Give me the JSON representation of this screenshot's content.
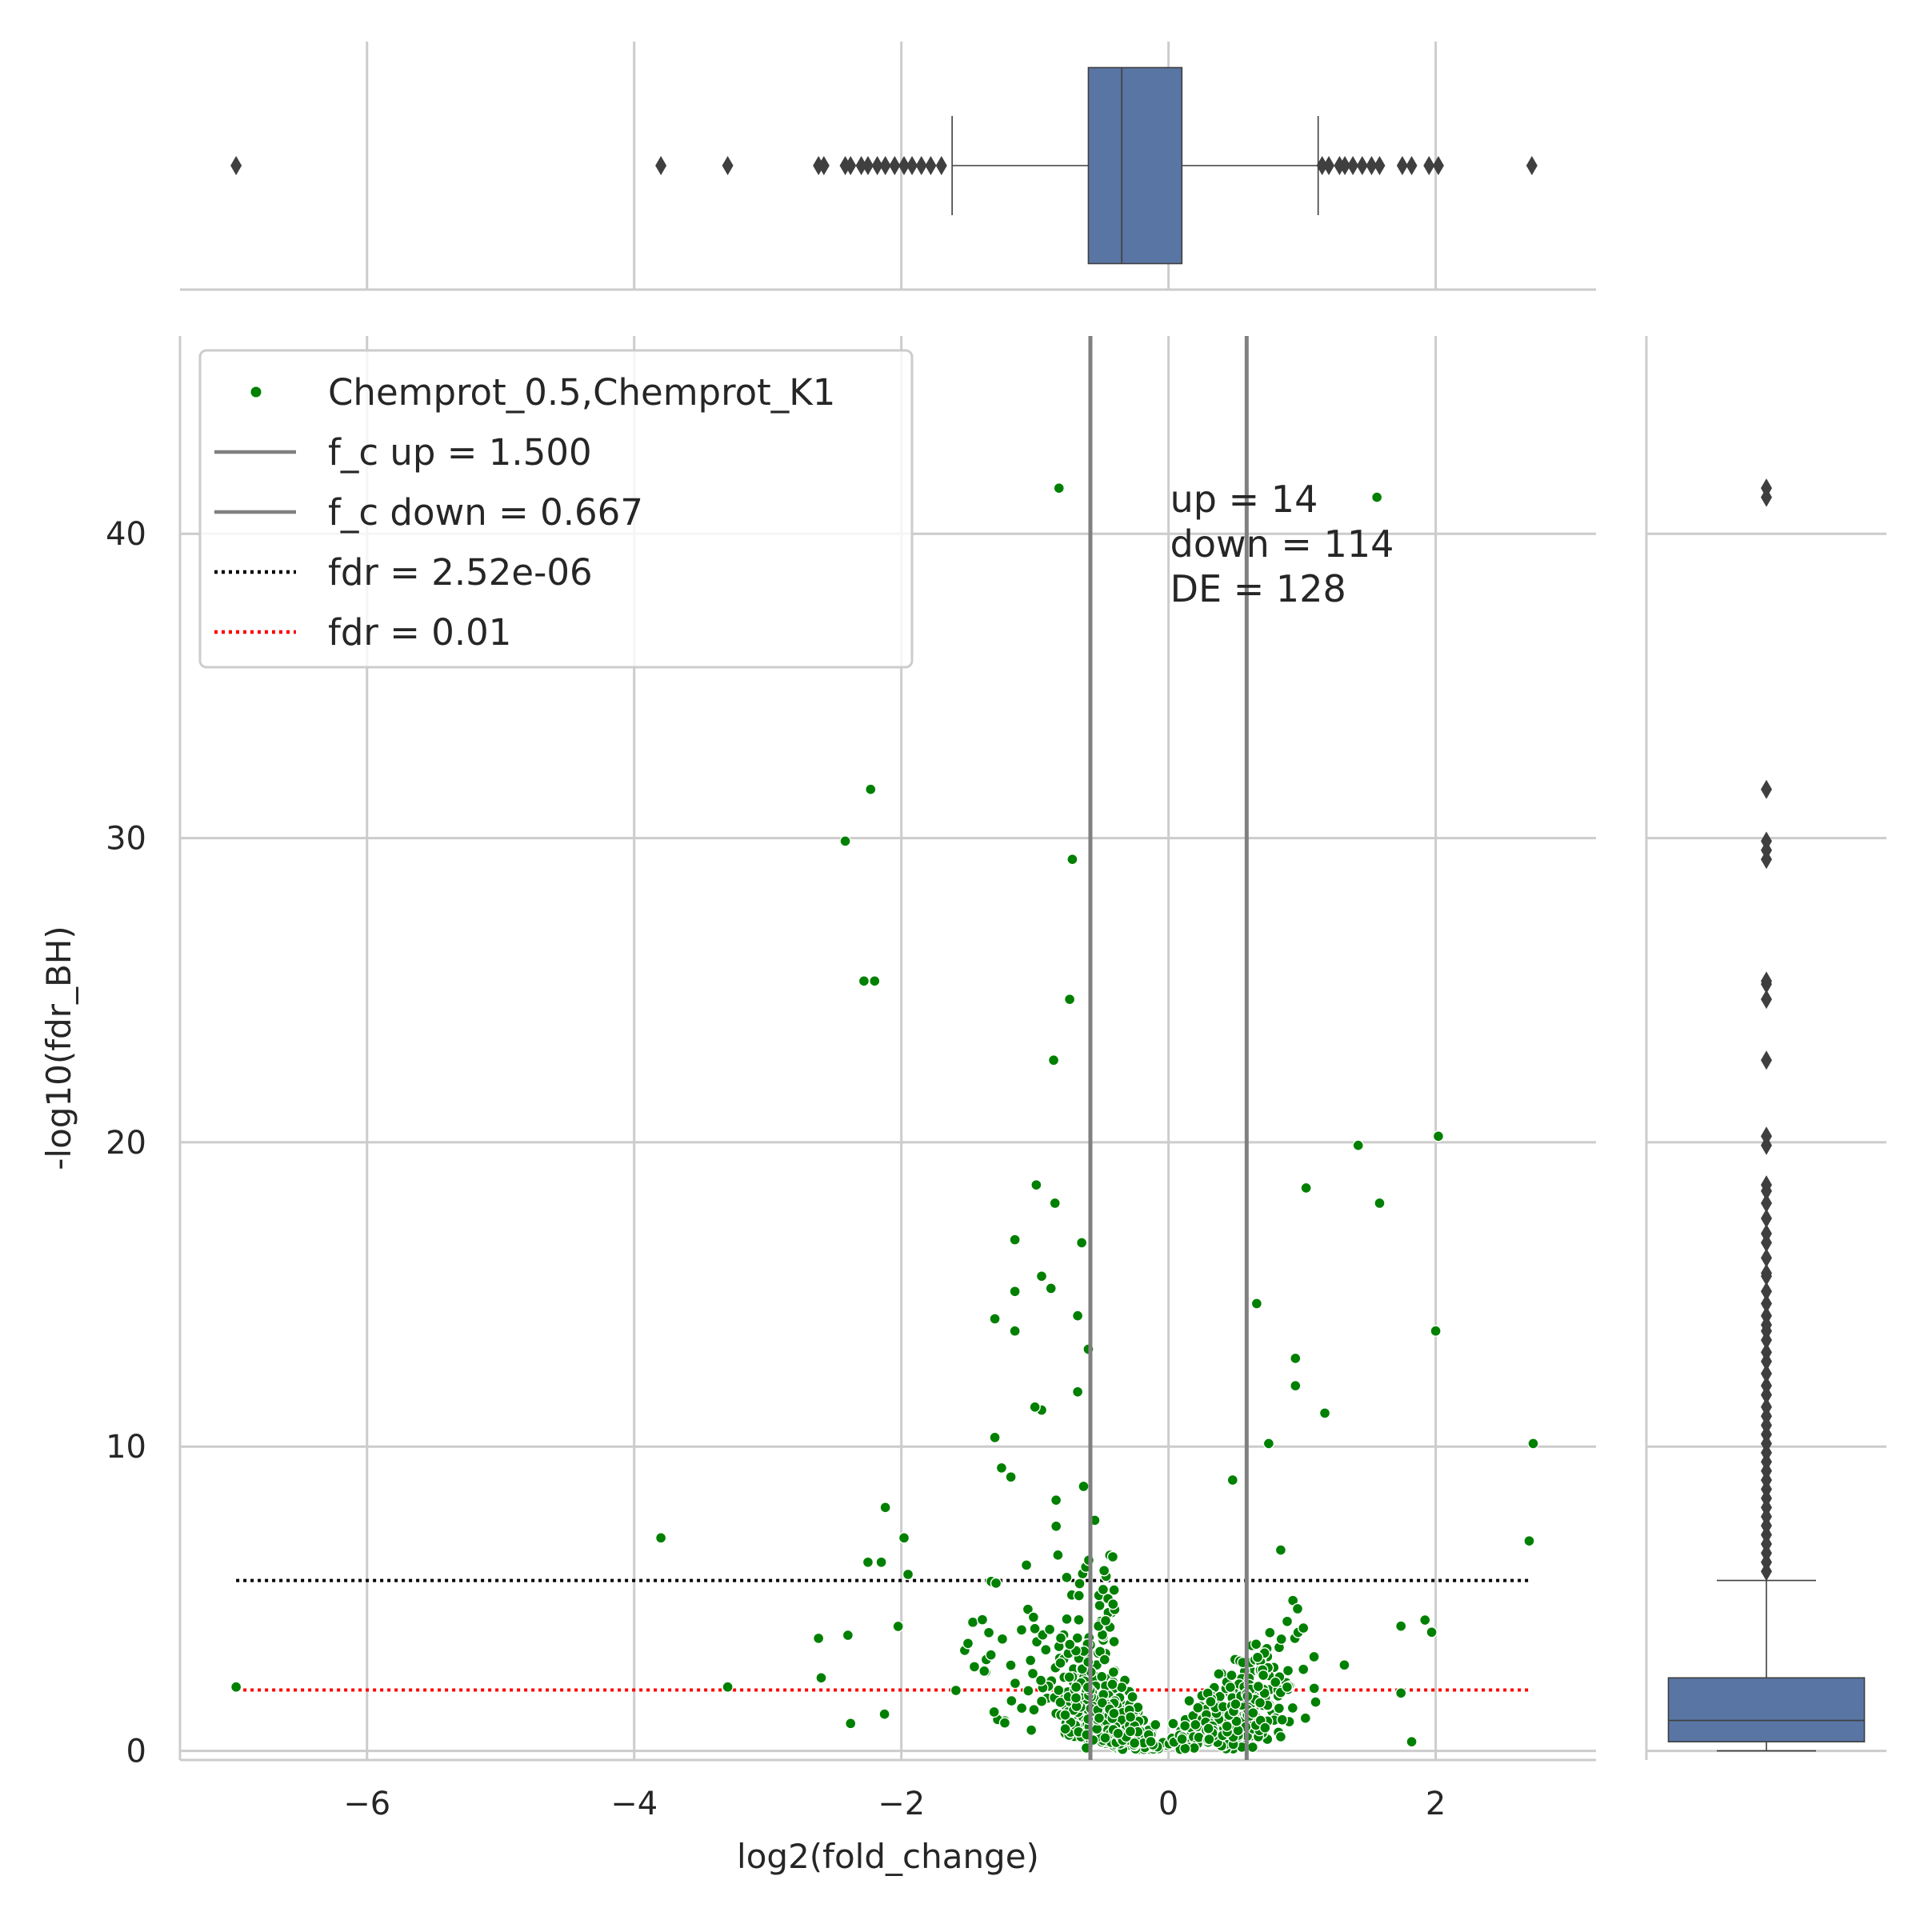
{
  "chart_data": {
    "type": "scatter",
    "subtype": "volcano-plot-with-marginal-boxplots",
    "xlabel": "log2(fold_change)",
    "ylabel": "-log10(fdr_BH)",
    "xlim": [
      -7.4,
      3.2
    ],
    "ylim": [
      -0.3,
      46.5
    ],
    "x_ticks": [
      -6,
      -4,
      -2,
      0,
      2
    ],
    "x_tick_labels": [
      "−6",
      "−4",
      "−2",
      "0",
      "2"
    ],
    "y_ticks": [
      0,
      10,
      20,
      30,
      40
    ],
    "y_tick_labels": [
      "0",
      "10",
      "20",
      "30",
      "40"
    ],
    "grid": true,
    "legend_position": "upper-left",
    "colors": {
      "points": "#008000",
      "fc_lines": "#808080",
      "fdr_strict": "#000000",
      "fdr_loose": "#ff0000",
      "box_fill": "#5975a4",
      "box_edge": "#3f3f3f",
      "grid": "#cccccc"
    },
    "legend": [
      {
        "label": "Chemprot_0.5,Chemprot_K1",
        "kind": "marker",
        "color": "#008000"
      },
      {
        "label": "f_c up = 1.500",
        "kind": "solid",
        "color": "#808080"
      },
      {
        "label": "f_c down = 0.667",
        "kind": "solid",
        "color": "#808080"
      },
      {
        "label": "fdr = 2.52e-06",
        "kind": "dotted",
        "color": "#000000"
      },
      {
        "label": "fdr = 0.01",
        "kind": "dotted",
        "color": "#ff0000"
      }
    ],
    "annotation": [
      "up = 14",
      "down = 114",
      "DE = 128"
    ],
    "vertical_lines_x": [
      -0.585,
      0.585
    ],
    "horizontal_lines": [
      {
        "y": 5.6,
        "xrange": [
          -6.98,
          2.72
        ],
        "color": "#000000"
      },
      {
        "y": 2.0,
        "xrange": [
          -6.98,
          2.72
        ],
        "color": "#ff0000"
      }
    ],
    "top_boxplot_x": {
      "q1": -0.6,
      "median": -0.35,
      "q3": 0.1,
      "whisker_low": -1.62,
      "whisker_high": 1.12,
      "outliers": [
        -6.98,
        -3.8,
        -3.3,
        -2.62,
        -2.58,
        -2.42,
        -2.38,
        -2.3,
        -2.25,
        -2.18,
        -2.12,
        -2.05,
        -1.98,
        -1.92,
        -1.85,
        -1.78,
        -1.7,
        1.15,
        1.2,
        1.28,
        1.32,
        1.38,
        1.45,
        1.52,
        1.58,
        1.75,
        1.82,
        1.95,
        2.02,
        2.72
      ]
    },
    "right_boxplot_y": {
      "q1": 0.3,
      "median": 1.0,
      "q3": 2.4,
      "whisker_low": 0.0,
      "whisker_high": 5.6,
      "outliers": [
        41.5,
        41.2,
        31.6,
        29.9,
        29.6,
        29.3,
        25.3,
        25.2,
        24.7,
        22.7,
        20.2,
        19.9,
        18.6,
        18.4,
        18.0,
        17.5,
        17.0,
        16.7,
        16.2,
        15.7,
        15.6,
        15.1,
        14.7,
        14.3,
        14.0,
        13.8,
        13.5,
        13.1,
        12.8,
        12.4,
        12.0,
        11.7,
        11.3,
        11.0,
        10.7,
        10.4,
        10.1,
        9.8,
        9.5,
        9.2,
        8.9,
        8.6,
        8.3,
        8.0,
        7.7,
        7.4,
        7.1,
        6.8,
        6.5,
        6.2,
        5.9
      ]
    },
    "highlighted_points": [
      {
        "x": -0.82,
        "y": 41.5
      },
      {
        "x": 1.56,
        "y": 41.2
      },
      {
        "x": -2.23,
        "y": 31.6
      },
      {
        "x": -2.42,
        "y": 29.9
      },
      {
        "x": -0.72,
        "y": 29.3
      },
      {
        "x": -2.28,
        "y": 25.3
      },
      {
        "x": -2.2,
        "y": 25.3
      },
      {
        "x": -0.74,
        "y": 24.7
      },
      {
        "x": -0.86,
        "y": 22.7
      },
      {
        "x": 2.02,
        "y": 20.2
      },
      {
        "x": 1.42,
        "y": 19.9
      },
      {
        "x": -0.99,
        "y": 18.6
      },
      {
        "x": 1.03,
        "y": 18.5
      },
      {
        "x": 1.58,
        "y": 18.0
      },
      {
        "x": -0.85,
        "y": 18.0
      },
      {
        "x": 0.66,
        "y": 14.7
      },
      {
        "x": 2.0,
        "y": 13.8
      },
      {
        "x": 0.95,
        "y": 12.9
      },
      {
        "x": 0.95,
        "y": 12.0
      },
      {
        "x": 1.17,
        "y": 11.1
      },
      {
        "x": 0.75,
        "y": 10.1
      },
      {
        "x": 2.73,
        "y": 10.1
      },
      {
        "x": -1.3,
        "y": 10.3
      },
      {
        "x": 0.48,
        "y": 8.9
      },
      {
        "x": -3.8,
        "y": 7.0
      },
      {
        "x": -2.12,
        "y": 8.0
      },
      {
        "x": -1.98,
        "y": 7.0
      },
      {
        "x": 2.7,
        "y": 6.9
      },
      {
        "x": 0.84,
        "y": 6.6
      },
      {
        "x": -6.98,
        "y": 2.1
      },
      {
        "x": -3.3,
        "y": 2.1
      },
      {
        "x": -2.6,
        "y": 2.4
      },
      {
        "x": -2.4,
        "y": 3.8
      },
      {
        "x": -2.38,
        "y": 0.9
      },
      {
        "x": -2.62,
        "y": 3.7
      },
      {
        "x": -2.25,
        "y": 6.2
      },
      {
        "x": -2.15,
        "y": 6.2
      },
      {
        "x": -1.95,
        "y": 5.8
      },
      {
        "x": 1.82,
        "y": 0.3
      },
      {
        "x": 1.92,
        "y": 4.3
      },
      {
        "x": 1.97,
        "y": 3.9
      },
      {
        "x": 1.74,
        "y": 4.1
      },
      {
        "x": 1.74,
        "y": 1.9
      },
      {
        "x": -1.15,
        "y": 16.8
      },
      {
        "x": -1.15,
        "y": 15.1
      },
      {
        "x": -0.95,
        "y": 15.6
      },
      {
        "x": -0.88,
        "y": 15.2
      },
      {
        "x": -1.15,
        "y": 13.8
      },
      {
        "x": -1.3,
        "y": 14.2
      },
      {
        "x": -0.65,
        "y": 16.7
      },
      {
        "x": -0.68,
        "y": 14.3
      },
      {
        "x": -0.6,
        "y": 13.2
      },
      {
        "x": -0.95,
        "y": 11.2
      },
      {
        "x": -1.0,
        "y": 11.3
      },
      {
        "x": -0.68,
        "y": 11.8
      },
      {
        "x": -1.25,
        "y": 9.3
      },
      {
        "x": -1.18,
        "y": 9.0
      }
    ],
    "n_points_approx": 2000
  }
}
